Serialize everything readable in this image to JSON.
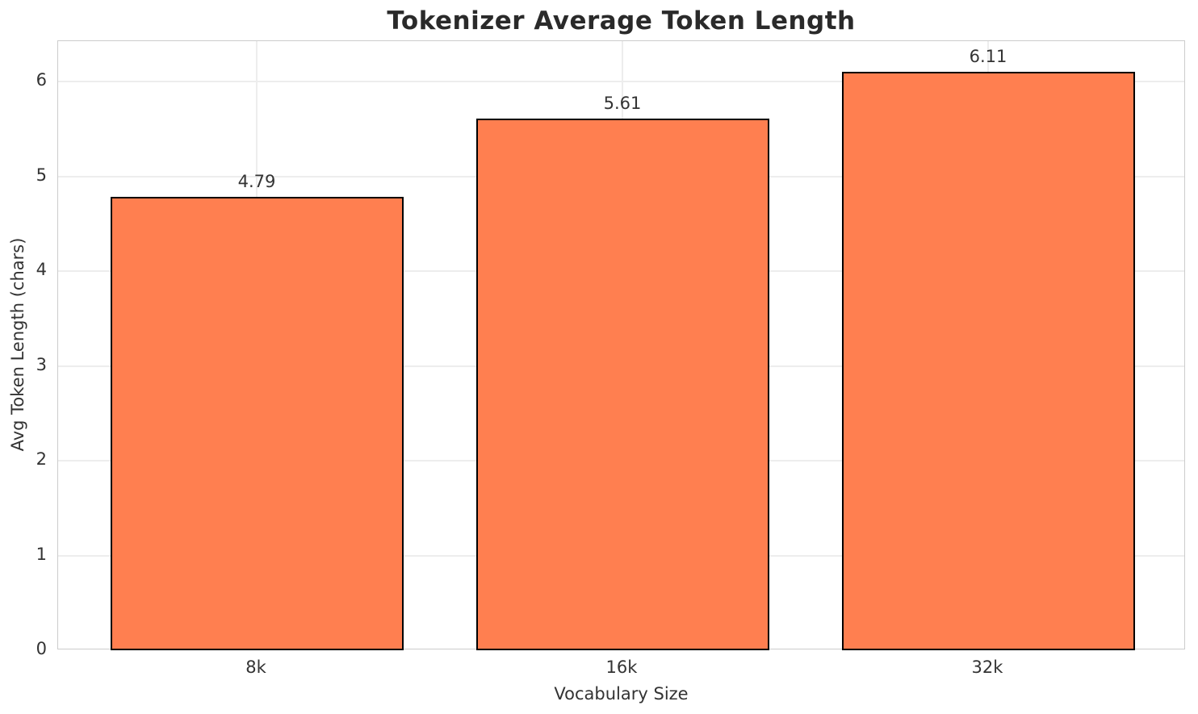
{
  "chart_data": {
    "type": "bar",
    "title": "Tokenizer Average Token Length",
    "xlabel": "Vocabulary Size",
    "ylabel": "Avg Token Length (chars)",
    "categories": [
      "8k",
      "16k",
      "32k"
    ],
    "values": [
      4.79,
      5.61,
      6.11
    ],
    "value_labels": [
      "4.79",
      "5.61",
      "6.11"
    ],
    "yticks": [
      0,
      1,
      2,
      3,
      4,
      5,
      6
    ],
    "ytick_labels": [
      "0",
      "1",
      "2",
      "3",
      "4",
      "5",
      "6"
    ],
    "ylim": [
      0,
      6.43
    ],
    "grid": true,
    "legend": "none",
    "colors": {
      "bar_fill": "#FF7F50",
      "bar_edge": "#000000",
      "grid": "#EDEDED",
      "spine": "#CCCCCC",
      "tick_text": "#333333",
      "title_text": "#2A2A2A",
      "background": "#FFFFFF"
    }
  }
}
